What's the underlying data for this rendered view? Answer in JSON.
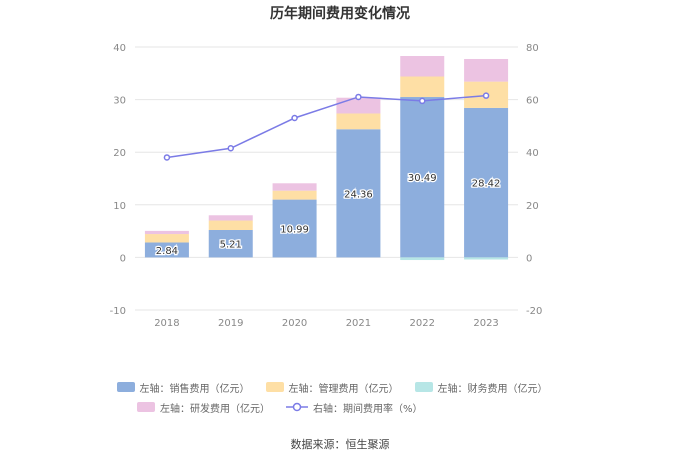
{
  "chart_data": {
    "type": "bar",
    "title": "历年期间费用变化情况",
    "categories": [
      "2018",
      "2019",
      "2020",
      "2021",
      "2022",
      "2023"
    ],
    "left_axis": {
      "ticks": [
        "-10",
        "0",
        "10",
        "20",
        "30",
        "40"
      ],
      "range": [
        -10,
        40
      ]
    },
    "right_axis": {
      "ticks": [
        "-20",
        "0",
        "20",
        "40",
        "60",
        "80"
      ],
      "range": [
        -20,
        80
      ]
    },
    "bar_series": [
      {
        "name": "左轴：销售费用（亿元）",
        "color": "#8daedd",
        "values": [
          2.84,
          5.21,
          10.99,
          24.36,
          30.49,
          28.42
        ],
        "labels": [
          "2.84",
          "5.21",
          "10.99",
          "24.36",
          "30.49",
          "28.42"
        ]
      },
      {
        "name": "左轴：管理费用（亿元）",
        "color": "#fedfa5",
        "values": [
          1.6,
          1.8,
          1.7,
          3.0,
          3.9,
          5.0
        ]
      },
      {
        "name": "左轴：财务费用（亿元）",
        "color": "#b7e6e6",
        "values": [
          0.0,
          0.0,
          0.0,
          0.0,
          -0.5,
          -0.4
        ]
      },
      {
        "name": "左轴：研发费用（亿元）",
        "color": "#ecc3e2",
        "values": [
          0.6,
          1.0,
          1.4,
          3.0,
          3.9,
          4.3
        ]
      }
    ],
    "line_series": {
      "name": "右轴：期间费用率（%）",
      "color": "#7b7be6",
      "values": [
        38.0,
        41.5,
        53.0,
        61.0,
        59.5,
        61.5
      ]
    }
  },
  "source": "数据来源：恒生聚源"
}
